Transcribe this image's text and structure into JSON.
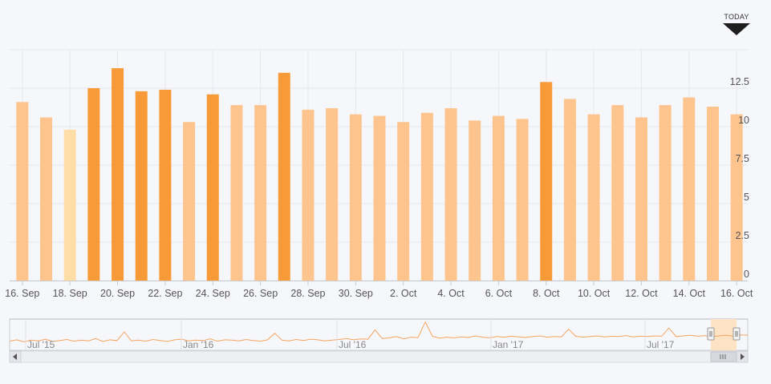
{
  "today_label": "TODAY",
  "chart_data": {
    "type": "bar",
    "categories": [
      "16. Sep",
      "17. Sep",
      "18. Sep",
      "19. Sep",
      "20. Sep",
      "21. Sep",
      "22. Sep",
      "23. Sep",
      "24. Sep",
      "25. Sep",
      "26. Sep",
      "27. Sep",
      "28. Sep",
      "29. Sep",
      "30. Sep",
      "1. Oct",
      "2. Oct",
      "3. Oct",
      "4. Oct",
      "5. Oct",
      "6. Oct",
      "7. Oct",
      "8. Oct",
      "9. Oct",
      "10. Oct",
      "11. Oct",
      "12. Oct",
      "13. Oct",
      "14. Oct",
      "15. Oct",
      "16. Oct"
    ],
    "values": [
      11.6,
      10.6,
      9.8,
      12.5,
      13.8,
      12.3,
      12.4,
      10.3,
      12.1,
      11.4,
      11.4,
      13.5,
      11.1,
      11.2,
      10.8,
      10.7,
      10.3,
      10.9,
      11.2,
      10.4,
      10.7,
      10.5,
      12.9,
      11.8,
      10.8,
      11.4,
      10.6,
      11.4,
      11.9,
      11.3,
      10.8
    ],
    "bar_colors": [
      "#fdc48d",
      "#fdc48d",
      "#fedda6",
      "#f99a38",
      "#f99a38",
      "#f99a38",
      "#f99a38",
      "#fdc48d",
      "#f99a38",
      "#fdc48d",
      "#fdc48d",
      "#f99a38",
      "#fdc48d",
      "#fdc48d",
      "#fdc48d",
      "#fdc48d",
      "#fdc48d",
      "#fdc48d",
      "#fdc48d",
      "#fdc48d",
      "#fdc48d",
      "#fdc48d",
      "#f99a38",
      "#fdc48d",
      "#fdc48d",
      "#fdc48d",
      "#fdc48d",
      "#fdc48d",
      "#fdc48d",
      "#fdc48d",
      "#fdc48d"
    ],
    "x_tick_labels": [
      "16. Sep",
      "18. Sep",
      "20. Sep",
      "22. Sep",
      "24. Sep",
      "26. Sep",
      "28. Sep",
      "30. Sep",
      "2. Oct",
      "4. Oct",
      "6. Oct",
      "8. Oct",
      "10. Oct",
      "12. Oct",
      "14. Oct",
      "16. Oct"
    ],
    "y_ticks": [
      0,
      2.5,
      5,
      7.5,
      10,
      12.5
    ],
    "y_tick_labels": [
      "0",
      "2.5",
      "5",
      "7.5",
      "10",
      "12.5"
    ],
    "ylim": [
      0,
      15
    ],
    "y_axis_side": "right",
    "grid": true,
    "title": "",
    "xlabel": "",
    "ylabel": "",
    "navigator": {
      "type": "line",
      "labels": [
        "Jul '15",
        "Jan '16",
        "Jul '16",
        "Jan '17",
        "Jul '17"
      ],
      "line_color": "#f4a460",
      "selection_color": "#fde2c4",
      "series_values": [
        9.8,
        10.2,
        9.6,
        10.1,
        9.9,
        10.4,
        9.7,
        10.0,
        10.3,
        9.8,
        10.1,
        9.9,
        10.6,
        9.7,
        10.2,
        10.0,
        12.6,
        9.9,
        10.1,
        9.8,
        10.3,
        10.0,
        9.7,
        10.2,
        10.4,
        9.9,
        10.1,
        10.0,
        10.5,
        9.8,
        10.2,
        10.1,
        9.9,
        10.3,
        10.0,
        9.8,
        10.2,
        12.2,
        10.1,
        9.9,
        10.3,
        10.0,
        10.4,
        10.2,
        9.9,
        10.1,
        10.3,
        10.6,
        10.2,
        10.5,
        10.4,
        13.2,
        10.6,
        10.8,
        11.2,
        10.5,
        11.0,
        10.9,
        15.6,
        11.3,
        10.7,
        11.0,
        10.8,
        11.1,
        10.9,
        11.4,
        11.0,
        10.8,
        11.2,
        11.0,
        11.3,
        11.1,
        10.9,
        11.2,
        11.4,
        11.0,
        11.2,
        11.1,
        13.4,
        11.3,
        11.0,
        11.2,
        11.4,
        11.1,
        11.3,
        11.2,
        11.5,
        11.1,
        11.3,
        11.2,
        11.4,
        11.3,
        13.8,
        11.2,
        11.4,
        11.6,
        11.3,
        11.5,
        11.2,
        11.4,
        11.6,
        11.3,
        11.7,
        11.6
      ]
    }
  }
}
